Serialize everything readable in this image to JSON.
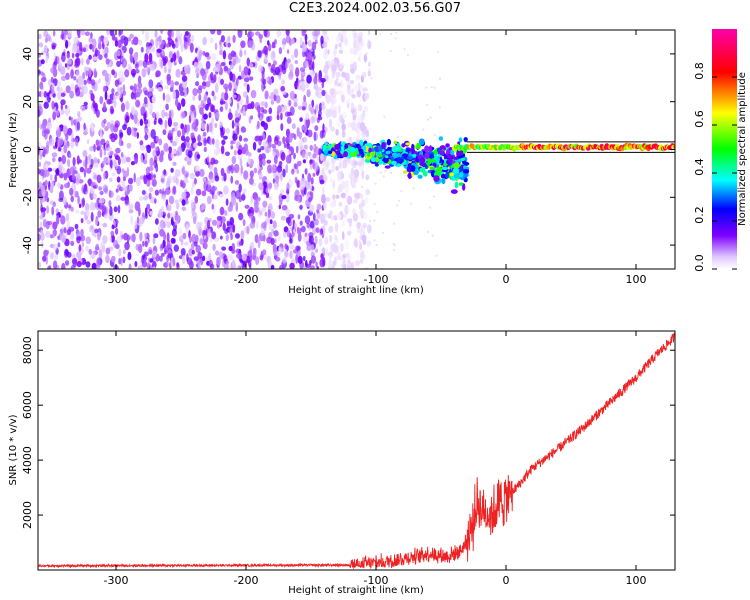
{
  "page_title": "C2E3.2024.002.03.56.G07",
  "chart_data": [
    {
      "type": "heatmap",
      "title": "C2E3.2024.002.03.56.G07",
      "xlabel": "Height of straight line (km)",
      "ylabel": "Frequency (Hz)",
      "xlim": [
        -360,
        130
      ],
      "ylim": [
        -50,
        50
      ],
      "x_ticks": [
        -300,
        -200,
        -100,
        0,
        100
      ],
      "y_ticks": [
        -40,
        -20,
        0,
        20,
        40
      ],
      "colorbar": {
        "label": "Normalized spectral amplitude",
        "range": [
          0,
          1
        ],
        "ticks": [
          0.0,
          0.2,
          0.4,
          0.6,
          0.8
        ],
        "colormap": [
          "#ffffff",
          "#7f00ff",
          "#0000ff",
          "#00ffff",
          "#00ff00",
          "#ffff00",
          "#ff0000",
          "#ff00ff"
        ]
      },
      "features": [
        {
          "name": "broadband noise",
          "x_range": [
            -360,
            -115
          ],
          "freq_range": [
            -50,
            50
          ],
          "amplitude": 0.1
        },
        {
          "name": "frequency spread",
          "x_range": [
            -115,
            -30
          ],
          "freq_center": 0,
          "amplitude": 0.5
        },
        {
          "name": "carrier line",
          "x_range": [
            -30,
            130
          ],
          "freq": 1,
          "amplitude": 0.9
        }
      ]
    },
    {
      "type": "line",
      "xlabel": "Height of straight line (km)",
      "ylabel": "SNR (10 * v/v)",
      "xlim": [
        -360,
        130
      ],
      "ylim": [
        0,
        8700
      ],
      "x_ticks": [
        -300,
        -200,
        -100,
        0,
        100
      ],
      "y_ticks": [
        2000,
        4000,
        6000,
        8000
      ],
      "series": [
        {
          "color": "#ee2222",
          "x": [
            -360,
            -300,
            -200,
            -120,
            -100,
            -80,
            -60,
            -45,
            -35,
            -28,
            -22,
            -18,
            -12,
            -6,
            0,
            10,
            20,
            40,
            60,
            80,
            100,
            115,
            130
          ],
          "y": [
            150,
            160,
            170,
            180,
            250,
            400,
            600,
            500,
            700,
            1200,
            2500,
            2200,
            2000,
            2400,
            2600,
            3100,
            3700,
            4400,
            5200,
            6100,
            7000,
            7800,
            8500
          ]
        }
      ]
    }
  ]
}
